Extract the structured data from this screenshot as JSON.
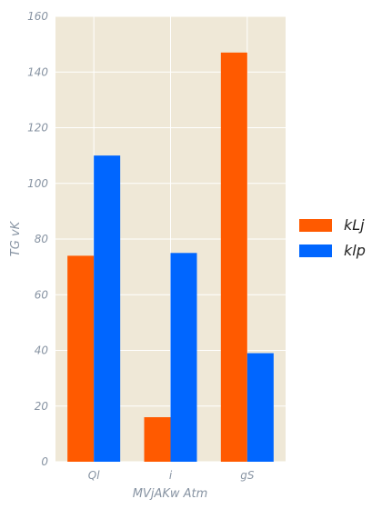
{
  "chart_data": {
    "type": "bar",
    "categories": [
      "Ql",
      "i",
      "gS"
    ],
    "series": [
      {
        "name": "kLj",
        "values": [
          74,
          16,
          147
        ],
        "color": "#ff5a00"
      },
      {
        "name": "klp",
        "values": [
          110,
          75,
          39
        ],
        "color": "#0066ff"
      }
    ],
    "xlabel": "MVjAKw Atm",
    "ylabel": "TG vK",
    "ylim": [
      0,
      160
    ],
    "yticks": [
      0,
      20,
      40,
      60,
      80,
      100,
      120,
      140,
      160
    ],
    "grid": true,
    "legend_position": "right",
    "plot_background": "#efe8d7",
    "grid_color": "#ffffff"
  }
}
